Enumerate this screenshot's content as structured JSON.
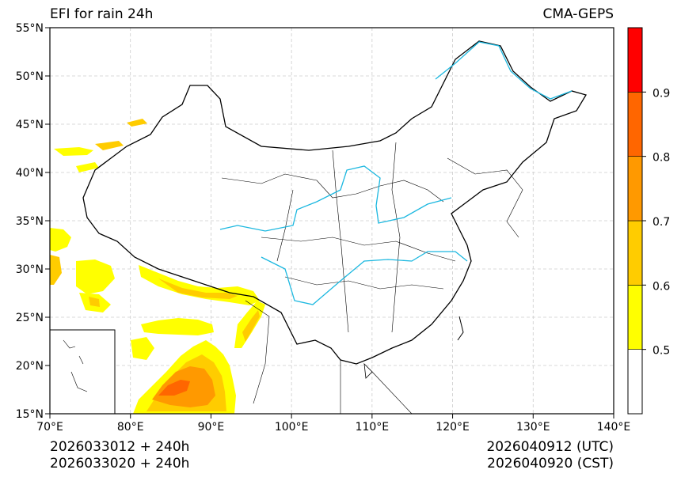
{
  "map": {
    "title": "EFI for rain 24h",
    "source": "CMA-GEPS",
    "lon_range": [
      70,
      140
    ],
    "lat_range": [
      15,
      55
    ],
    "x_ticks": [
      "70°E",
      "80°E",
      "90°E",
      "100°E",
      "110°E",
      "120°E",
      "130°E",
      "140°E"
    ],
    "y_ticks": [
      "15°N",
      "20°N",
      "25°N",
      "30°N",
      "35°N",
      "40°N",
      "45°N",
      "50°N",
      "55°N"
    ]
  },
  "colorbar": {
    "levels": [
      "0.5",
      "0.6",
      "0.7",
      "0.8",
      "0.9"
    ],
    "colors": [
      "#ffffff",
      "#ffff00",
      "#ffcc00",
      "#ff9900",
      "#ff6600",
      "#ff0000"
    ]
  },
  "footer": {
    "init_utc": "2026033012 + 240h",
    "init_cst": "2026033020 + 240h",
    "valid_utc": "2026040912 (UTC)",
    "valid_cst": "2026040920 (CST)"
  }
}
